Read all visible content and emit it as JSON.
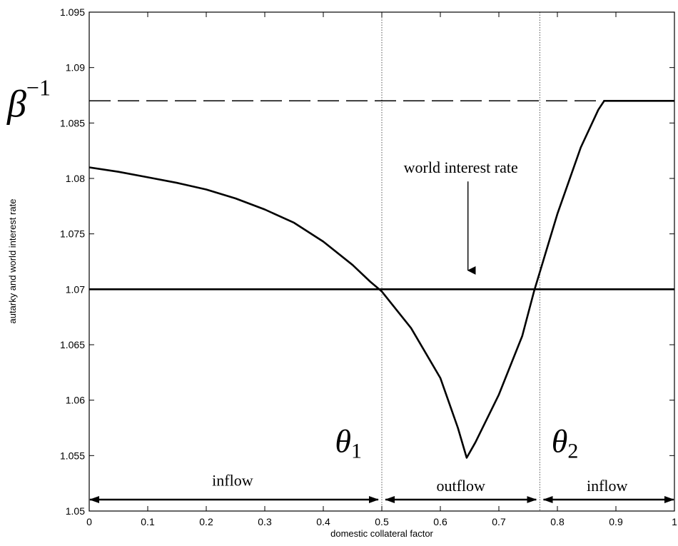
{
  "chart_data": {
    "type": "line",
    "title": "",
    "xlabel": "domestic collateral factor",
    "ylabel": "autarky and world interest rate",
    "xlim": [
      0,
      1
    ],
    "ylim": [
      1.05,
      1.095
    ],
    "xticks": [
      0,
      0.1,
      0.2,
      0.3,
      0.4,
      0.5,
      0.6,
      0.7,
      0.8,
      0.9,
      1
    ],
    "xtick_labels": [
      "0",
      "0.1",
      "0.2",
      "0.3",
      "0.4",
      "0.5",
      "0.6",
      "0.7",
      "0.8",
      "0.9",
      "1"
    ],
    "yticks": [
      1.05,
      1.055,
      1.06,
      1.065,
      1.07,
      1.075,
      1.08,
      1.085,
      1.09,
      1.095
    ],
    "ytick_labels": [
      "1.05",
      "1.055",
      "1.06",
      "1.065",
      "1.07",
      "1.075",
      "1.08",
      "1.085",
      "1.09",
      "1.095"
    ],
    "grid": false,
    "series": [
      {
        "style": "solid",
        "x": [
          0,
          0.05,
          0.1,
          0.15,
          0.2,
          0.25,
          0.3,
          0.35,
          0.4,
          0.45,
          0.48,
          0.5,
          0.55,
          0.6,
          0.63,
          0.645,
          0.66,
          0.7,
          0.74,
          0.76,
          0.8,
          0.84,
          0.87,
          0.88,
          0.9,
          1.0
        ],
        "y": [
          1.081,
          1.0806,
          1.0801,
          1.0796,
          1.079,
          1.0782,
          1.0772,
          1.076,
          1.0743,
          1.0722,
          1.0707,
          1.0698,
          1.0665,
          1.062,
          1.0575,
          1.0548,
          1.0562,
          1.0605,
          1.0658,
          1.0698,
          1.0768,
          1.0828,
          1.0862,
          1.087,
          1.087,
          1.087
        ]
      },
      {
        "style": "solid",
        "x": [
          0,
          1
        ],
        "y": [
          1.07,
          1.07
        ]
      },
      {
        "style": "dashed",
        "x": [
          0,
          1
        ],
        "y": [
          1.087,
          1.087
        ]
      }
    ],
    "vlines": [
      0.5,
      0.77
    ],
    "arrows": [
      {
        "label": "inflow",
        "x_from": 0,
        "x_to": 0.495,
        "label_x": 0.245,
        "label_y": 1.0523
      },
      {
        "label": "outflow",
        "x_from": 0.505,
        "x_to": 0.765,
        "label_x": 0.635,
        "label_y": 1.0518
      },
      {
        "label": "inflow",
        "x_from": 0.775,
        "x_to": 1.0,
        "label_x": 0.885,
        "label_y": 1.0518
      }
    ],
    "annotations": [
      {
        "id": "world-rate",
        "text": "world interest rate",
        "x": 0.635,
        "y": 1.0805,
        "arrow_to_y": 1.0717
      },
      {
        "id": "theta1",
        "symbol": "θ",
        "sub": "1",
        "x": 0.42,
        "y": 1.0553
      },
      {
        "id": "theta2",
        "symbol": "θ",
        "sub": "2",
        "x": 0.79,
        "y": 1.0553
      }
    ],
    "beta_label": {
      "symbol": "β",
      "sup": "−1",
      "y": 1.087
    }
  }
}
